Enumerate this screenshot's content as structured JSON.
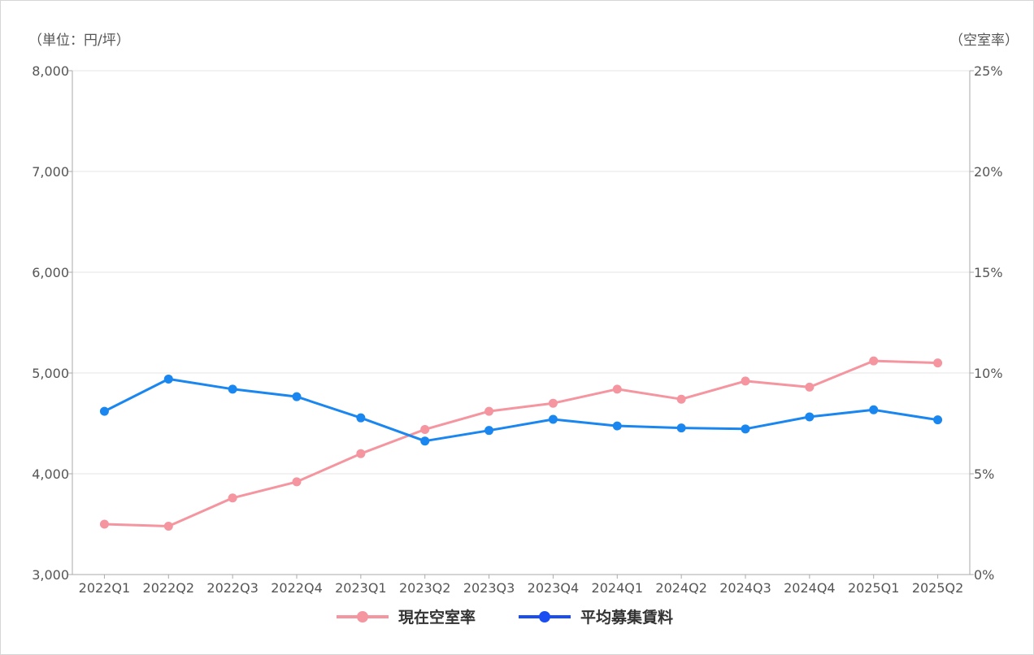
{
  "chart_data": {
    "type": "line",
    "categories": [
      "2022Q1",
      "2022Q2",
      "2022Q3",
      "2022Q4",
      "2023Q1",
      "2023Q2",
      "2023Q3",
      "2023Q4",
      "2024Q1",
      "2024Q2",
      "2024Q3",
      "2024Q4",
      "2025Q1",
      "2025Q2"
    ],
    "left_axis": {
      "unit_label": "（単位：円/坪）",
      "ylim": [
        3000,
        8000
      ],
      "ticks": [
        3000,
        4000,
        5000,
        6000,
        7000,
        8000
      ],
      "tick_labels": [
        "3,000",
        "4,000",
        "5,000",
        "6,000",
        "7,000",
        "8,000"
      ]
    },
    "right_axis": {
      "unit_label": "（空室率）",
      "ylim": [
        0,
        25
      ],
      "ticks": [
        0,
        5,
        10,
        15,
        20,
        25
      ],
      "tick_labels": [
        "0%",
        "5%",
        "10%",
        "15%",
        "20%",
        "25%"
      ]
    },
    "series": [
      {
        "name": "現在空室率",
        "axis": "right",
        "color": "#f4959f",
        "values": [
          2.5,
          2.4,
          3.8,
          4.6,
          6.0,
          7.2,
          8.1,
          8.5,
          9.2,
          8.7,
          9.6,
          9.3,
          10.6,
          10.5
        ]
      },
      {
        "name": "平均募集賃料",
        "axis": "left",
        "color": "#1a86f0",
        "legend_color": "#1a4ef0",
        "values": [
          4620,
          4940,
          4840,
          4765,
          4555,
          4325,
          4430,
          4540,
          4475,
          4455,
          4445,
          4565,
          4635,
          4535
        ]
      }
    ],
    "grid": true,
    "legend": "bottom-center"
  }
}
